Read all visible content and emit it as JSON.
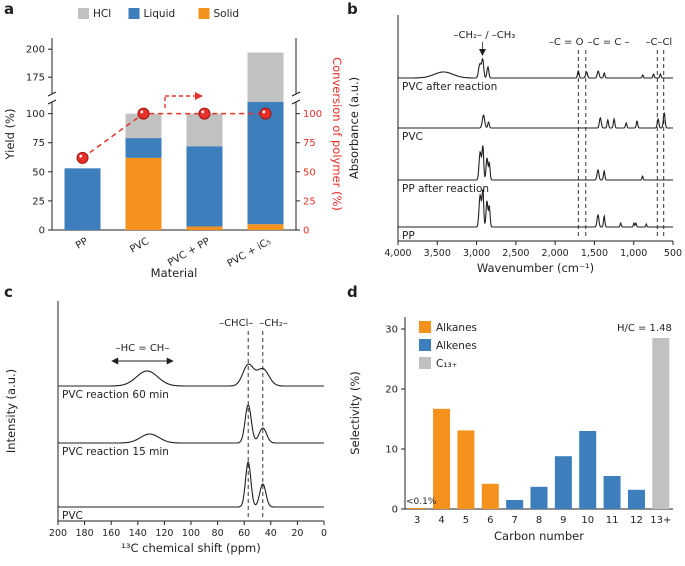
{
  "panels": {
    "a": {
      "label": "a"
    },
    "b": {
      "label": "b"
    },
    "c": {
      "label": "c"
    },
    "d": {
      "label": "d"
    }
  },
  "colors": {
    "orange": "#f5921e",
    "blue": "#3d7ebd",
    "gray": "#c1c1c1",
    "red": "#e8302a",
    "red_dark": "#a01510",
    "ink": "#231f20"
  },
  "chart_data": [
    {
      "id": "a",
      "type": "bar",
      "categories": [
        "PP",
        "PVC",
        "PVC + PP",
        "PVC + iC₅"
      ],
      "series": [
        {
          "name": "Solid",
          "color_key": "orange",
          "values": [
            0,
            62,
            3,
            5
          ]
        },
        {
          "name": "Liquid",
          "color_key": "blue",
          "values": [
            53,
            17,
            69,
            105
          ]
        },
        {
          "name": "HCl",
          "color_key": "gray",
          "values": [
            0,
            21,
            28,
            87
          ]
        }
      ],
      "legend_order": [
        "HCl",
        "Liquid",
        "Solid"
      ],
      "line_series": {
        "name": "Conversion of polymer",
        "color_key": "red",
        "values": [
          62,
          100,
          100,
          100
        ]
      },
      "xlabel": "Material",
      "ylabel": "Yield (%)",
      "ylabel_right": "Conversion of polymer (%)",
      "yticks_lower": [
        0,
        25,
        50,
        75,
        100
      ],
      "yticks_upper": [
        175,
        200
      ],
      "yticks_right": [
        0,
        25,
        50,
        75,
        100
      ],
      "axis_break": true
    },
    {
      "id": "b",
      "type": "line",
      "kind": "spectra",
      "xlabel": "Wavenumber (cm⁻¹)",
      "ylabel": "Absorbance (a.u.)",
      "x_range": [
        4000,
        500
      ],
      "x_reversed": true,
      "xticks": [
        4000,
        3500,
        3000,
        2500,
        2000,
        1500,
        1000,
        500
      ],
      "xtick_labels": [
        "4,000",
        "3,500",
        "3,000",
        "2,500",
        "2,000",
        "1,500",
        "1,000",
        "500"
      ],
      "traces": [
        {
          "label": "PVC after reaction",
          "baseline": 78,
          "peaks": [
            [
              3420,
              6,
              120
            ],
            [
              2958,
              14,
              16
            ],
            [
              2922,
              18,
              13
            ],
            [
              2856,
              11,
              12
            ],
            [
              1705,
              7,
              10
            ],
            [
              1600,
              6,
              12
            ],
            [
              1452,
              7,
              12
            ],
            [
              1375,
              5,
              9
            ],
            [
              885,
              3,
              8
            ],
            [
              748,
              4,
              8
            ],
            [
              660,
              4,
              8
            ]
          ]
        },
        {
          "label": "PVC",
          "baseline": 128,
          "peaks": [
            [
              2912,
              13,
              15
            ],
            [
              2848,
              6,
              10
            ],
            [
              1425,
              10,
              12
            ],
            [
              1330,
              8,
              9
            ],
            [
              1250,
              9,
              9
            ],
            [
              1096,
              5,
              9
            ],
            [
              958,
              7,
              9
            ],
            [
              690,
              9,
              10
            ],
            [
              612,
              15,
              11
            ]
          ]
        },
        {
          "label": "PP after reaction",
          "baseline": 180,
          "peaks": [
            [
              2954,
              28,
              14
            ],
            [
              2920,
              33,
              11
            ],
            [
              2868,
              22,
              11
            ],
            [
              2838,
              17,
              10
            ],
            [
              1455,
              10,
              12
            ],
            [
              1376,
              9,
              9
            ],
            [
              888,
              4,
              7
            ]
          ]
        },
        {
          "label": "PP",
          "baseline": 227,
          "peaks": [
            [
              2954,
              32,
              14
            ],
            [
              2920,
              36,
              11
            ],
            [
              2868,
              26,
              11
            ],
            [
              2838,
              21,
              10
            ],
            [
              1455,
              12,
              12
            ],
            [
              1376,
              11,
              9
            ],
            [
              1166,
              4,
              8
            ],
            [
              997,
              4,
              7
            ],
            [
              972,
              4,
              7
            ],
            [
              840,
              3,
              6
            ]
          ]
        }
      ],
      "dashed_lines": [
        1705,
        1610,
        700,
        618
      ],
      "annotations": [
        {
          "text": "–CH₂– / –CH₃",
          "x": 2900,
          "y": 38,
          "type": "label-arrow",
          "ax": 2925,
          "ay": 56
        },
        {
          "text": "–C = O",
          "x": 1860,
          "y": 45
        },
        {
          "text": "–C = C –",
          "x": 1320,
          "y": 45
        },
        {
          "text": "–C–Cl",
          "x": 680,
          "y": 45
        }
      ]
    },
    {
      "id": "c",
      "type": "line",
      "kind": "spectra",
      "xlabel": "¹³C chemical shift (ppm)",
      "ylabel": "Intensity (a.u.)",
      "x_range": [
        200,
        0
      ],
      "x_reversed": true,
      "xticks": [
        200,
        180,
        160,
        140,
        120,
        100,
        80,
        60,
        40,
        20,
        0
      ],
      "xtick_labels": [
        "200",
        "180",
        "160",
        "140",
        "120",
        "100",
        "80",
        "60",
        "40",
        "20",
        "0"
      ],
      "traces": [
        {
          "label": "PVC reaction 60 min",
          "baseline": 103,
          "peaks": [
            [
              133,
              15,
              8
            ],
            [
              57,
              21,
              4
            ],
            [
              46,
              17,
              4.5
            ]
          ]
        },
        {
          "label": "PVC reaction 15 min",
          "baseline": 160,
          "peaks": [
            [
              131,
              9,
              7
            ],
            [
              57,
              38,
              2.3
            ],
            [
              46,
              15,
              2.8
            ]
          ]
        },
        {
          "label": "PVC",
          "baseline": 224,
          "peaks": [
            [
              57,
              45,
              2.0
            ],
            [
              46,
              23,
              2.3
            ]
          ]
        }
      ],
      "dashed_lines": [
        57,
        46
      ],
      "annotations": [
        {
          "text": "–HC = CH–",
          "x": 136.5,
          "y": 68,
          "type": "double-arrow",
          "x1": 160,
          "x2": 113,
          "ay": 78
        },
        {
          "text": "–CHCl–",
          "x": 66,
          "y": 43
        },
        {
          "text": "–CH₂–",
          "x": 38,
          "y": 43
        }
      ]
    },
    {
      "id": "d",
      "type": "bar",
      "categories": [
        "3",
        "4",
        "5",
        "6",
        "7",
        "8",
        "9",
        "10",
        "11",
        "12",
        "13+"
      ],
      "values": [
        0.05,
        16.7,
        13.1,
        4.2,
        1.5,
        3.7,
        8.8,
        13.0,
        5.5,
        3.2,
        28.5
      ],
      "group": [
        "Alkanes",
        "Alkanes",
        "Alkanes",
        "Alkanes",
        "Alkenes",
        "Alkenes",
        "Alkenes",
        "Alkenes",
        "Alkenes",
        "Alkenes",
        "C₁₃₊"
      ],
      "legend": [
        {
          "label": "Alkanes",
          "color_key": "orange"
        },
        {
          "label": "Alkenes",
          "color_key": "blue"
        },
        {
          "label": "C₁₃₊",
          "color_key": "gray"
        }
      ],
      "xlabel": "Carbon number",
      "ylabel": "Selectivity (%)",
      "ylim": [
        0,
        32
      ],
      "yticks": [
        0,
        10,
        20,
        30
      ],
      "annotations": [
        {
          "text": "<0.1%",
          "cat": "3",
          "kind": "small"
        },
        {
          "text": "H/C = 1.48",
          "cat": "13+",
          "kind": "top"
        }
      ]
    }
  ]
}
